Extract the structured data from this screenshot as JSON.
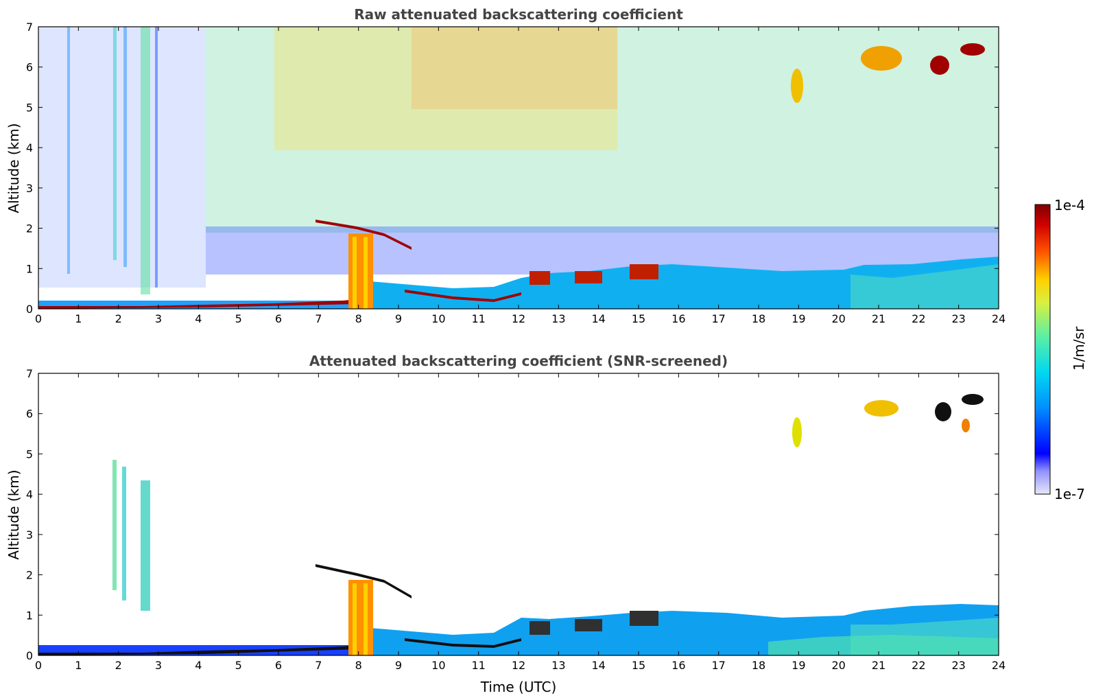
{
  "chart_data": [
    {
      "type": "heatmap",
      "title": "Raw attenuated backscattering coefficient",
      "xlabel": "",
      "ylabel": "Altitude (km)",
      "xlim": [
        0,
        24
      ],
      "ylim": [
        0,
        7
      ],
      "xticks": [
        "0",
        "1",
        "2",
        "3",
        "4",
        "5",
        "6",
        "7",
        "8",
        "9",
        "10",
        "11",
        "12",
        "13",
        "14",
        "15",
        "16",
        "17",
        "18",
        "19",
        "20",
        "21",
        "22",
        "23",
        "24"
      ],
      "yticks": [
        "0",
        "1",
        "2",
        "3",
        "4",
        "5",
        "6",
        "7"
      ],
      "features": [
        {
          "name": "surface layer",
          "time_start": 0,
          "time_end": 7.6,
          "alt_top": 0.25,
          "level": "high"
        },
        {
          "name": "boundary layer top",
          "time": [
            7,
            7.8,
            8.5,
            9.5,
            10.5,
            11.5,
            12,
            13,
            14,
            15,
            16,
            18,
            20,
            22,
            24
          ],
          "alt": [
            0.25,
            0.3,
            0.45,
            0.4,
            0.3,
            0.5,
            1.0,
            0.6,
            0.7,
            0.9,
            1.0,
            1.0,
            1.0,
            1.1,
            1.2
          ]
        },
        {
          "name": "elevated layer",
          "time": [
            7,
            7.5,
            8,
            8.5,
            9
          ],
          "alt": [
            2.2,
            2.1,
            1.9,
            1.7,
            1.5
          ],
          "level": "high"
        },
        {
          "name": "precipitation column",
          "time_start": 7.7,
          "time_end": 8.3,
          "alt_top": 1.8,
          "level": "high"
        },
        {
          "name": "upper cloud",
          "time": 19,
          "alt_top": 5.9,
          "alt_bottom": 5.1
        },
        {
          "name": "upper cloud",
          "time": 21,
          "alt_top": 6.4,
          "alt_bottom": 5.6
        },
        {
          "name": "upper cloud",
          "time": 22.5,
          "alt_top": 6.5,
          "alt_bottom": 5.5
        },
        {
          "name": "upper cloud",
          "time": 23.5,
          "alt_top": 6.8,
          "alt_bottom": 6.1
        }
      ]
    },
    {
      "type": "heatmap",
      "title": "Attenuated backscattering coefficient (SNR-screened)",
      "xlabel": "Time (UTC)",
      "ylabel": "Altitude (km)",
      "xlim": [
        0,
        24
      ],
      "ylim": [
        0,
        7
      ],
      "xticks": [
        "0",
        "1",
        "2",
        "3",
        "4",
        "5",
        "6",
        "7",
        "8",
        "9",
        "10",
        "11",
        "12",
        "13",
        "14",
        "15",
        "16",
        "17",
        "18",
        "19",
        "20",
        "21",
        "22",
        "23",
        "24"
      ],
      "yticks": [
        "0",
        "1",
        "2",
        "3",
        "4",
        "5",
        "6",
        "7"
      ]
    }
  ],
  "colorbar": {
    "label": "1/m/sr",
    "max_label": "1e-4",
    "min_label": "1e-7",
    "colormap": "jet",
    "colors": [
      "#e6e8f8",
      "#0000ff",
      "#00a0ff",
      "#40e0c0",
      "#a0f060",
      "#ffe000",
      "#ff6000",
      "#cc0000",
      "#800000"
    ]
  }
}
